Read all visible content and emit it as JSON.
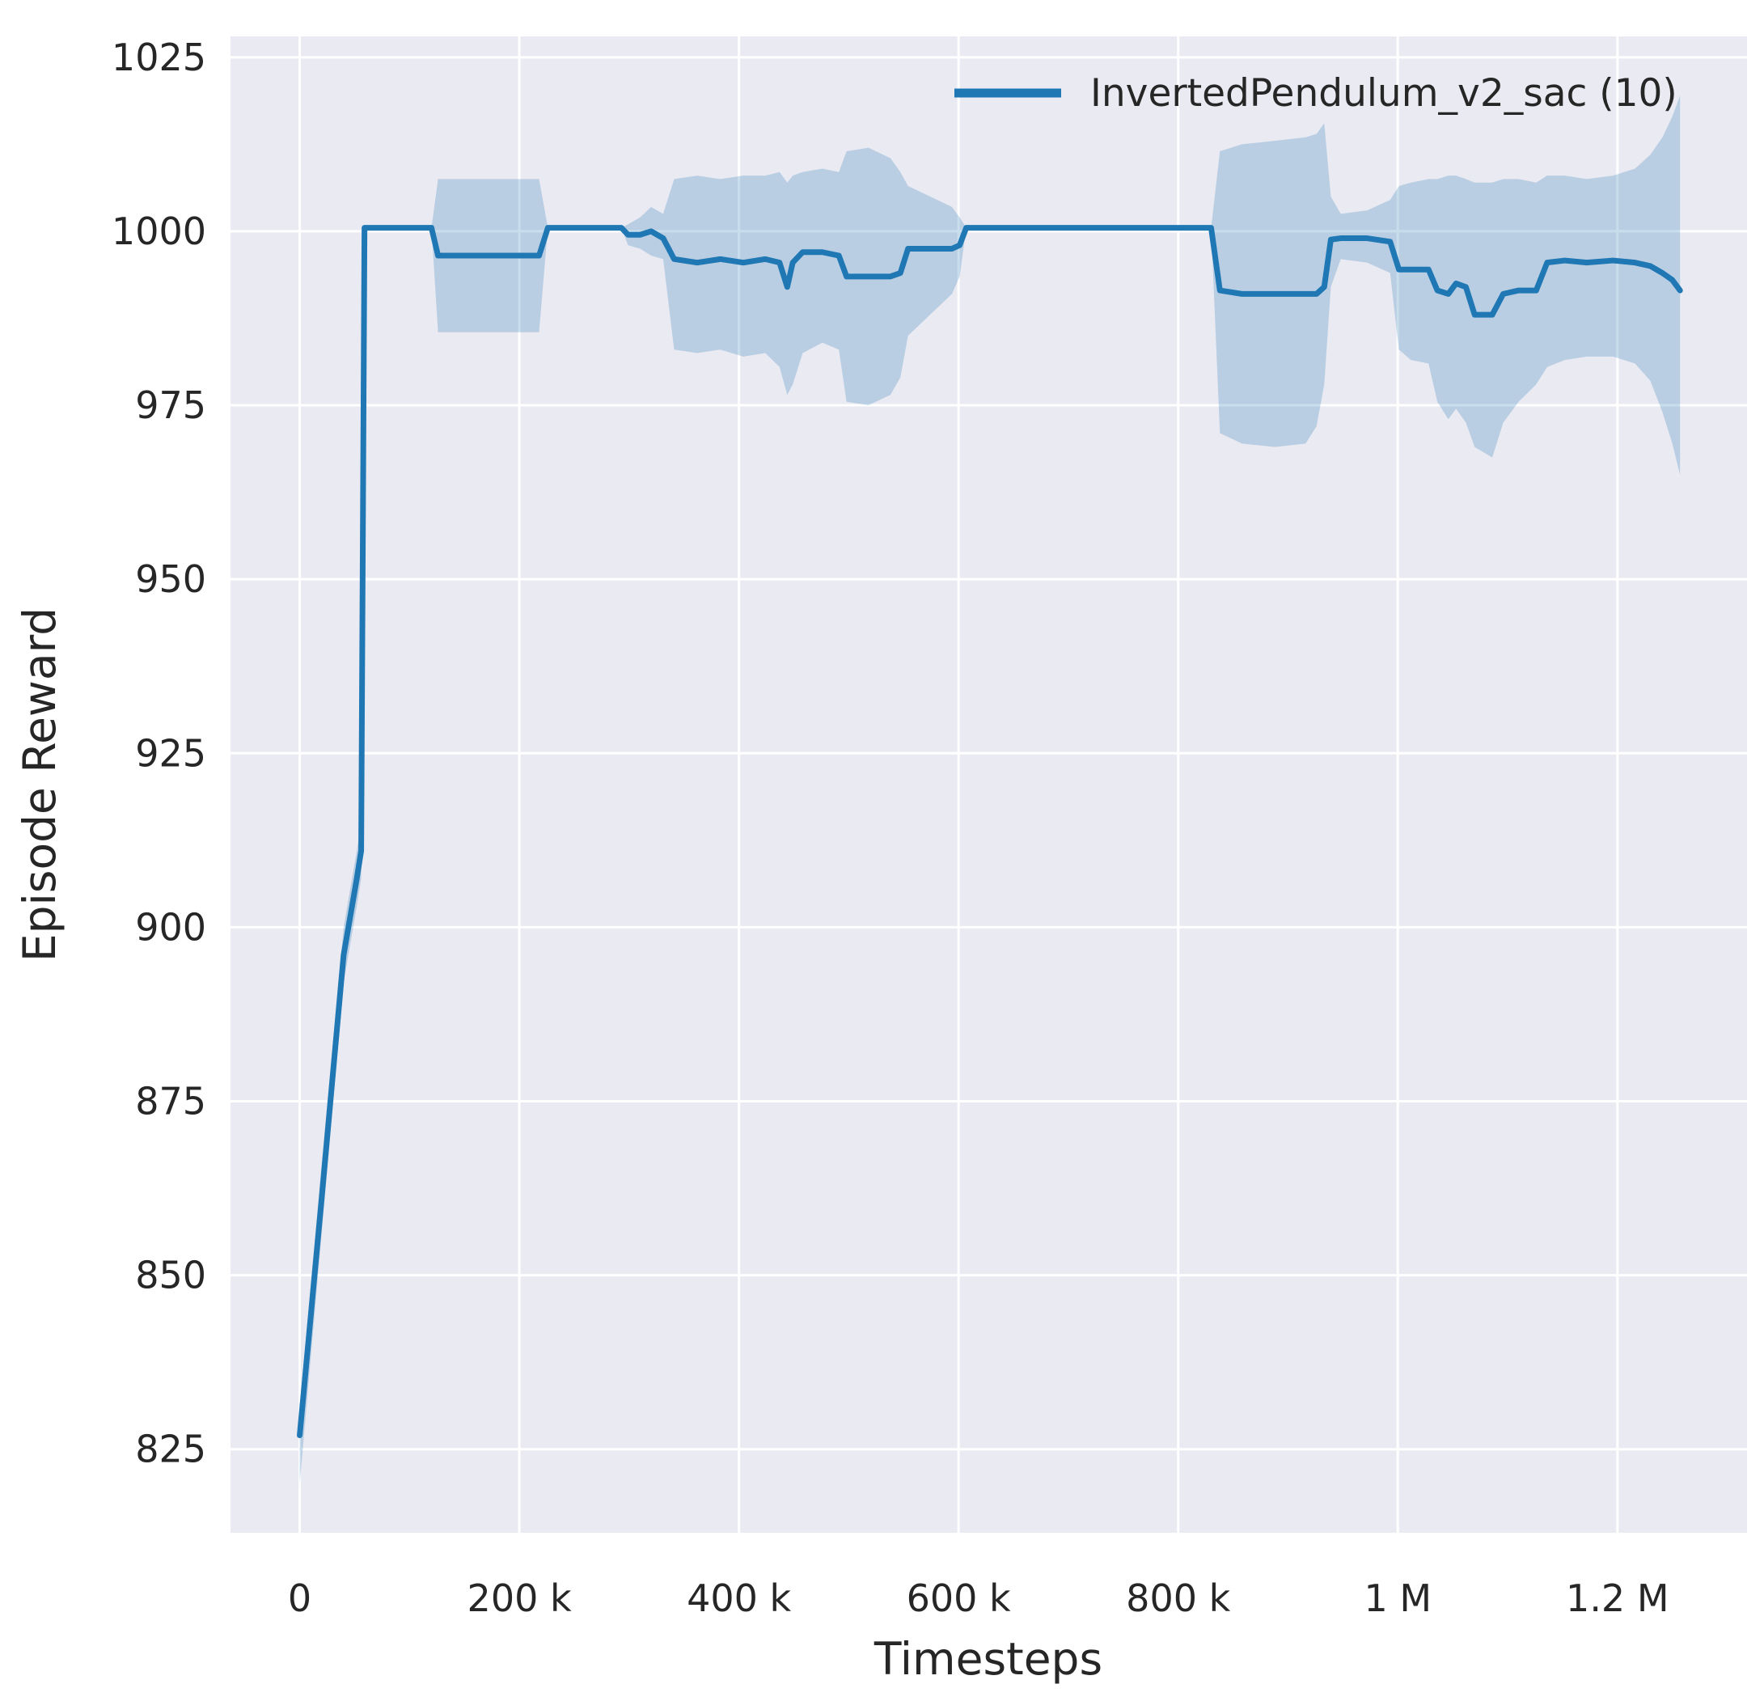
{
  "figure": {
    "background": "#ffffff",
    "plot_background": "#eaeaf2",
    "grid_color": "#ffffff",
    "text_color": "#262626"
  },
  "chart_data": {
    "type": "line",
    "title": "",
    "xlabel": "Timesteps",
    "ylabel": "Episode Reward",
    "grid": true,
    "legend": {
      "position": "upper right"
    },
    "xlim": [
      -63000,
      1318000
    ],
    "ylim": [
      813,
      1028
    ],
    "x_ticks": [
      {
        "value": 0,
        "label": "0"
      },
      {
        "value": 200000,
        "label": "200 k"
      },
      {
        "value": 400000,
        "label": "400 k"
      },
      {
        "value": 600000,
        "label": "600 k"
      },
      {
        "value": 800000,
        "label": "800 k"
      },
      {
        "value": 1000000,
        "label": "1 M"
      },
      {
        "value": 1200000,
        "label": "1.2 M"
      }
    ],
    "y_ticks": [
      {
        "value": 825,
        "label": "825"
      },
      {
        "value": 850,
        "label": "850"
      },
      {
        "value": 875,
        "label": "875"
      },
      {
        "value": 900,
        "label": "900"
      },
      {
        "value": 925,
        "label": "925"
      },
      {
        "value": 950,
        "label": "950"
      },
      {
        "value": 975,
        "label": "975"
      },
      {
        "value": 1000,
        "label": "1000"
      },
      {
        "value": 1025,
        "label": "1025"
      }
    ],
    "series": [
      {
        "name": "InvertedPendulum_v2_sac (10)",
        "color": "#1f77b4",
        "band_opacity": 0.24,
        "points_format": [
          "timesteps",
          "mean_reward",
          "band_low",
          "band_high"
        ],
        "points": [
          [
            0,
            827,
            820,
            831
          ],
          [
            20000,
            861,
            856,
            866
          ],
          [
            40000,
            896,
            892,
            900
          ],
          [
            52000,
            907,
            903,
            911
          ],
          [
            56000,
            911,
            907,
            915
          ],
          [
            59000,
            1000.5,
            1000.5,
            1000.5
          ],
          [
            120000,
            1000.5,
            1000.5,
            1000.5
          ],
          [
            126000,
            996.5,
            985.5,
            1007.5
          ],
          [
            218000,
            996.5,
            985.5,
            1007.5
          ],
          [
            226000,
            1000.5,
            1000.5,
            1000.5
          ],
          [
            293000,
            1000.5,
            1000.5,
            1000.5
          ],
          [
            299000,
            999.5,
            998,
            1001
          ],
          [
            310000,
            999.5,
            997.5,
            1002
          ],
          [
            320000,
            1000,
            996.5,
            1003.5
          ],
          [
            331000,
            999,
            996,
            1002.5
          ],
          [
            341000,
            996,
            983,
            1007.5
          ],
          [
            362000,
            995.5,
            982.5,
            1008
          ],
          [
            383000,
            996,
            983,
            1007.5
          ],
          [
            404000,
            995.5,
            982,
            1008
          ],
          [
            424000,
            996,
            982.5,
            1008
          ],
          [
            437000,
            995.5,
            980.5,
            1008.5
          ],
          [
            444000,
            992,
            976.5,
            1007
          ],
          [
            449000,
            995.5,
            978,
            1008
          ],
          [
            458000,
            997,
            982.5,
            1008.5
          ],
          [
            476000,
            997,
            984,
            1009
          ],
          [
            491000,
            996.5,
            983,
            1008.5
          ],
          [
            498000,
            993.5,
            975.5,
            1011.5
          ],
          [
            518000,
            993.5,
            975,
            1012
          ],
          [
            538000,
            993.5,
            976.5,
            1010.5
          ],
          [
            547000,
            994,
            979,
            1008.5
          ],
          [
            554000,
            997.5,
            985,
            1006.5
          ],
          [
            574000,
            997.5,
            988,
            1005
          ],
          [
            594000,
            997.5,
            991,
            1003.5
          ],
          [
            601000,
            998,
            993.5,
            1002
          ],
          [
            607000,
            1000.5,
            1000.5,
            1000.5
          ],
          [
            830000,
            1000.5,
            1000.5,
            1000.5
          ],
          [
            838000,
            991.5,
            971,
            1011.5
          ],
          [
            858000,
            991,
            969.5,
            1012.5
          ],
          [
            888000,
            991,
            969,
            1013
          ],
          [
            916000,
            991,
            969.5,
            1013.5
          ],
          [
            926000,
            991,
            972,
            1014
          ],
          [
            933000,
            992,
            978,
            1015.5
          ],
          [
            939000,
            998.8,
            992,
            1005
          ],
          [
            948000,
            999,
            996,
            1002.5
          ],
          [
            972000,
            999,
            995.5,
            1003
          ],
          [
            993000,
            998.5,
            994,
            1004.5
          ],
          [
            1001000,
            994.5,
            983,
            1006.5
          ],
          [
            1012000,
            994.5,
            981.5,
            1007
          ],
          [
            1028000,
            994.5,
            981,
            1007.5
          ],
          [
            1036000,
            991.5,
            975.5,
            1007.5
          ],
          [
            1046000,
            991,
            973,
            1008
          ],
          [
            1053000,
            992.5,
            974.5,
            1008
          ],
          [
            1062000,
            992,
            972.5,
            1007.5
          ],
          [
            1070000,
            988,
            969,
            1007
          ],
          [
            1086000,
            988,
            967.5,
            1007
          ],
          [
            1096000,
            991,
            972.5,
            1007.5
          ],
          [
            1110000,
            991.5,
            975.5,
            1007.5
          ],
          [
            1126000,
            991.5,
            978,
            1007
          ],
          [
            1136000,
            995.5,
            980.5,
            1008
          ],
          [
            1152000,
            995.8,
            981.5,
            1008
          ],
          [
            1172000,
            995.5,
            982,
            1007.5
          ],
          [
            1196000,
            995.8,
            982,
            1008
          ],
          [
            1216000,
            995.5,
            981,
            1009
          ],
          [
            1230000,
            995,
            978.5,
            1011
          ],
          [
            1241000,
            994,
            974,
            1013.5
          ],
          [
            1250000,
            993,
            969.5,
            1016.5
          ],
          [
            1257000,
            991.5,
            965,
            1019.5
          ]
        ]
      }
    ]
  }
}
